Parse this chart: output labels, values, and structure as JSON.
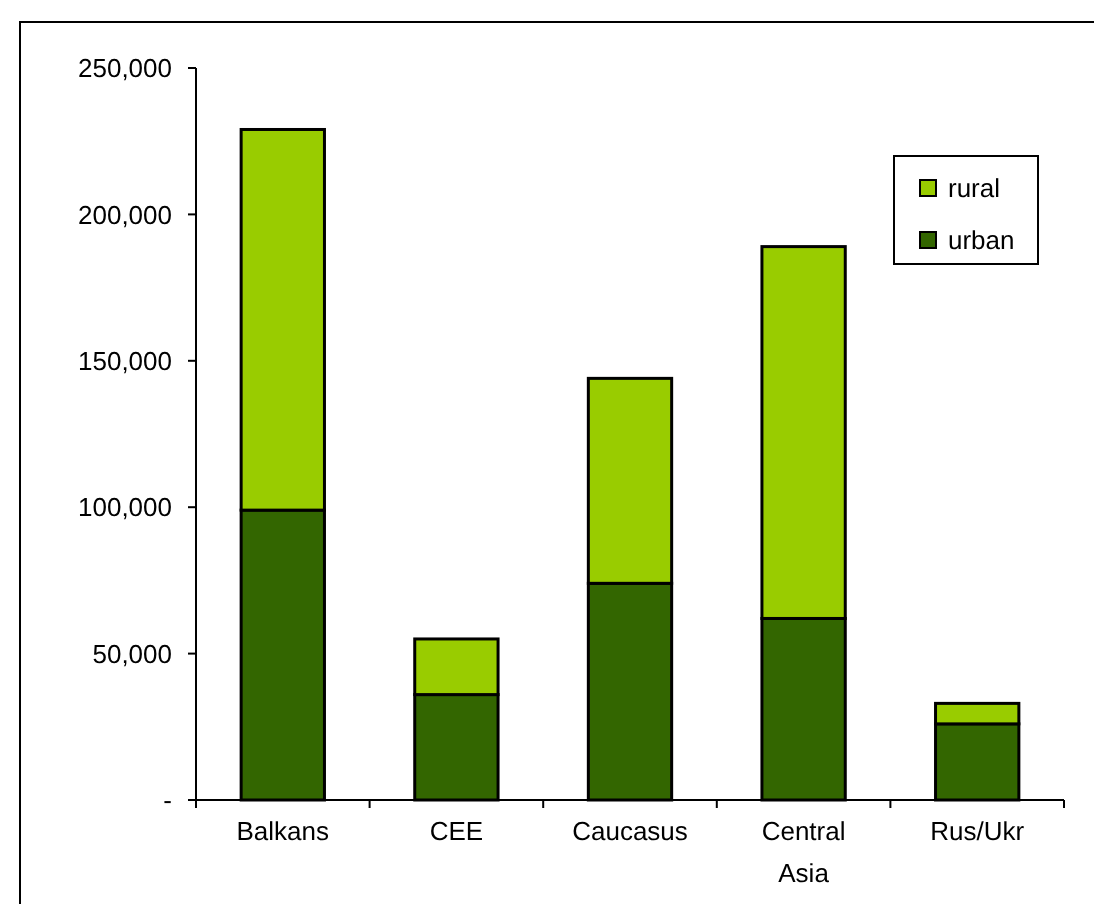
{
  "chart_data": {
    "type": "bar",
    "stacked": true,
    "categories": [
      "Balkans",
      "CEE",
      "Caucasus",
      "Central Asia",
      "Rus/Ukr"
    ],
    "series": [
      {
        "name": "urban",
        "color": "#336600",
        "values": [
          99000,
          36000,
          74000,
          62000,
          26000
        ]
      },
      {
        "name": "rural",
        "color": "#99cc00",
        "values": [
          130000,
          19000,
          70000,
          127000,
          7000
        ]
      }
    ],
    "ylim": [
      0,
      250000
    ],
    "yticks": [
      {
        "value": 0,
        "label": "-"
      },
      {
        "value": 50000,
        "label": "50,000"
      },
      {
        "value": 100000,
        "label": "100,000"
      },
      {
        "value": 150000,
        "label": "150,000"
      },
      {
        "value": 200000,
        "label": "200,000"
      },
      {
        "value": 250000,
        "label": "250,000"
      }
    ],
    "legend": "top right"
  }
}
